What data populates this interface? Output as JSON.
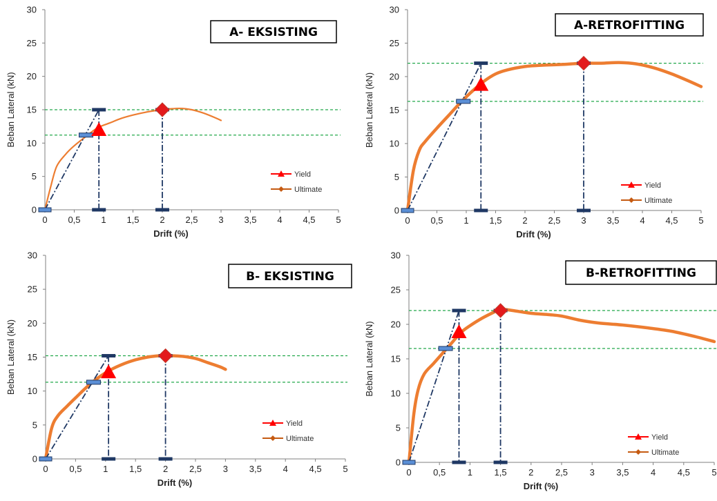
{
  "chart_data": [
    {
      "type": "line",
      "title": "A- EKSISTING",
      "xlabel": "Drift (%)",
      "ylabel": "Beban Lateral (kN)",
      "xlim": [
        0,
        5
      ],
      "ylim": [
        0,
        30
      ],
      "xticks": [
        "0",
        "0,5",
        "1",
        "1,5",
        "2",
        "2,5",
        "3",
        "3,5",
        "4",
        "4,5",
        "5"
      ],
      "yticks": [
        "0",
        "5",
        "10",
        "15",
        "20",
        "25",
        "30"
      ],
      "curve": {
        "x": [
          0,
          0.1,
          0.2,
          0.35,
          0.5,
          0.7,
          0.9,
          1.1,
          1.3,
          1.5,
          1.7,
          1.9,
          2.1,
          2.3,
          2.5,
          2.7,
          2.9,
          3.0
        ],
        "y": [
          0,
          3.5,
          6.5,
          8.3,
          9.6,
          11.0,
          12.3,
          13.0,
          13.7,
          14.2,
          14.6,
          14.9,
          15.1,
          15.2,
          15.0,
          14.5,
          13.8,
          13.4
        ]
      },
      "curve_weight": "thin",
      "yield": {
        "x": 0.92,
        "y": 12.0
      },
      "ultimate": {
        "x": 2.0,
        "y": 15.0
      },
      "idealization": {
        "x": [
          0,
          0.92
        ],
        "y": [
          0,
          15.0
        ]
      },
      "hlines": [
        11.2,
        15.0
      ],
      "markers_x": [
        {
          "x": 0.92,
          "top": 15.0
        },
        {
          "x": 2.0,
          "top": 15.0
        }
      ],
      "yield_mark": {
        "x": 0.7,
        "y": 11.2
      },
      "legend": [
        "Yield",
        "Ultimate"
      ],
      "legend_placement": "right-middle"
    },
    {
      "type": "line",
      "title": "A-RETROFITTING",
      "xlabel": "Drift (%)",
      "ylabel": "Beban Lateral (kN)",
      "xlim": [
        0,
        5
      ],
      "ylim": [
        0,
        30
      ],
      "xticks": [
        "0",
        "0,5",
        "1",
        "1,5",
        "2",
        "2,5",
        "3",
        "3,5",
        "4",
        "4,5",
        "5"
      ],
      "yticks": [
        "0",
        "5",
        "10",
        "15",
        "20",
        "25",
        "30"
      ],
      "curve": {
        "x": [
          0,
          0.1,
          0.2,
          0.3,
          0.5,
          0.7,
          0.9,
          1.1,
          1.3,
          1.5,
          1.7,
          2.0,
          2.3,
          2.6,
          3.0,
          3.3,
          3.6,
          3.9,
          4.2,
          4.5,
          4.8,
          5.0
        ],
        "y": [
          0,
          6.0,
          9.0,
          10.3,
          12.3,
          14.2,
          16.1,
          17.8,
          19.3,
          20.4,
          21.0,
          21.5,
          21.7,
          21.8,
          22.0,
          22.0,
          22.1,
          21.9,
          21.3,
          20.4,
          19.3,
          18.5
        ]
      },
      "curve_weight": "thick",
      "yield": {
        "x": 1.25,
        "y": 18.8
      },
      "ultimate": {
        "x": 3.0,
        "y": 22.0
      },
      "idealization": {
        "x": [
          0,
          1.25
        ],
        "y": [
          0,
          22.0
        ]
      },
      "hlines": [
        16.3,
        22.0
      ],
      "markers_x": [
        {
          "x": 1.25,
          "top": 22.0
        },
        {
          "x": 3.0,
          "top": 22.0
        }
      ],
      "yield_mark": {
        "x": 0.95,
        "y": 16.3
      },
      "legend": [
        "Yield",
        "Ultimate"
      ],
      "legend_placement": "bottom-right"
    },
    {
      "type": "line",
      "title": "B- EKSISTING",
      "xlabel": "Drift (%)",
      "ylabel": "Beban Lateral (kN)",
      "xlim": [
        0,
        5
      ],
      "ylim": [
        0,
        30
      ],
      "xticks": [
        "0",
        "0,5",
        "1",
        "1,5",
        "2",
        "2,5",
        "3",
        "3,5",
        "4",
        "4,5",
        "5"
      ],
      "yticks": [
        "0",
        "5",
        "10",
        "15",
        "20",
        "25",
        "30"
      ],
      "curve": {
        "x": [
          0,
          0.1,
          0.2,
          0.35,
          0.5,
          0.7,
          0.9,
          1.1,
          1.3,
          1.5,
          1.7,
          1.9,
          2.1,
          2.3,
          2.5,
          2.7,
          2.9,
          3.0
        ],
        "y": [
          0,
          4.5,
          6.3,
          7.7,
          9.0,
          10.7,
          12.1,
          13.2,
          14.0,
          14.6,
          15.0,
          15.2,
          15.2,
          15.1,
          14.8,
          14.2,
          13.6,
          13.2
        ]
      },
      "curve_weight": "thick",
      "yield": {
        "x": 1.05,
        "y": 12.8
      },
      "ultimate": {
        "x": 2.0,
        "y": 15.2
      },
      "idealization": {
        "x": [
          0,
          1.05
        ],
        "y": [
          0,
          15.2
        ]
      },
      "hlines": [
        11.3,
        15.2
      ],
      "markers_x": [
        {
          "x": 1.05,
          "top": 15.2
        },
        {
          "x": 2.0,
          "top": 15.2
        }
      ],
      "yield_mark": {
        "x": 0.8,
        "y": 11.3
      },
      "legend": [
        "Yield",
        "Ultimate"
      ],
      "legend_placement": "bottom-right"
    },
    {
      "type": "line",
      "title": "B-RETROFITTING",
      "xlabel": "Drift (%)",
      "ylabel": "Beban Lateral (kN)",
      "xlim": [
        0,
        5
      ],
      "ylim": [
        0,
        30
      ],
      "xticks": [
        "0",
        "0,5",
        "1",
        "1,5",
        "2",
        "2,5",
        "3",
        "3,5",
        "4",
        "4,5",
        "5"
      ],
      "yticks": [
        "0",
        "5",
        "10",
        "15",
        "20",
        "25",
        "30"
      ],
      "curve": {
        "x": [
          0,
          0.08,
          0.15,
          0.25,
          0.4,
          0.55,
          0.7,
          0.85,
          1.0,
          1.2,
          1.4,
          1.5,
          1.7,
          2.0,
          2.3,
          2.5,
          2.8,
          3.1,
          3.5,
          3.9,
          4.3,
          4.7,
          5.0
        ],
        "y": [
          0,
          7.0,
          10.5,
          12.8,
          14.3,
          15.8,
          17.3,
          18.8,
          19.8,
          20.9,
          21.8,
          22.2,
          22.0,
          21.6,
          21.4,
          21.2,
          20.6,
          20.2,
          19.9,
          19.5,
          19.0,
          18.2,
          17.5
        ]
      },
      "curve_weight": "thick",
      "yield": {
        "x": 0.82,
        "y": 18.9
      },
      "ultimate": {
        "x": 1.5,
        "y": 22.0
      },
      "idealization": {
        "x": [
          0,
          0.82
        ],
        "y": [
          0,
          22.0
        ]
      },
      "hlines": [
        16.5,
        22.0
      ],
      "markers_x": [
        {
          "x": 0.82,
          "top": 22.0
        },
        {
          "x": 1.5,
          "top": 22.0
        }
      ],
      "yield_mark": {
        "x": 0.6,
        "y": 16.5
      },
      "legend": [
        "Yield",
        "Ultimate"
      ],
      "legend_placement": "bottom-right"
    }
  ],
  "colors": {
    "curve": "#ED7D31",
    "idealization": "#1F3864",
    "hline": "#22A84A",
    "yield": "#FF0000",
    "ultimate": "#E31A1C",
    "ultimate_edge": "#C0392B",
    "axis": "#7F7F7F",
    "yield_marker_fill": "#5B8FD6",
    "yield_marker_edge": "#1F3864"
  }
}
